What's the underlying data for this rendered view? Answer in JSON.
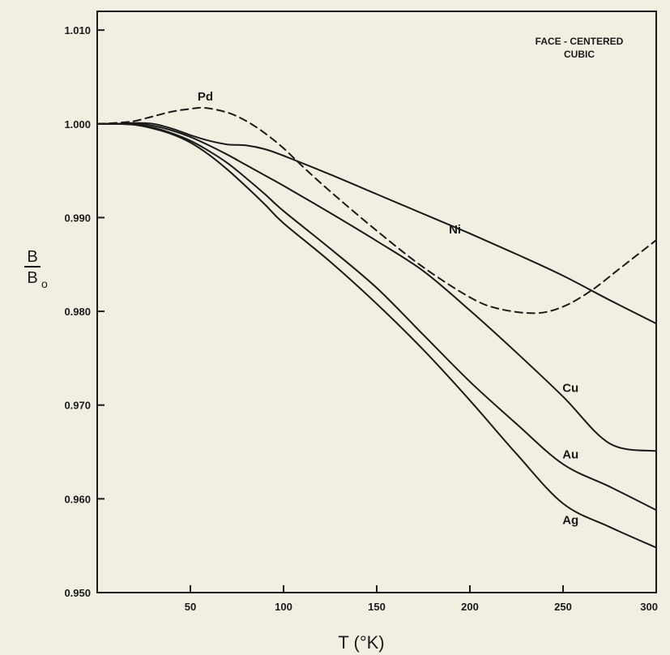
{
  "chart_data": {
    "type": "line",
    "annotation": [
      "FACE - CENTERED",
      "CUBIC"
    ],
    "xlabel": "T (°K)",
    "ylabel_num": "B",
    "ylabel_den": "B",
    "ylabel_sub": "o",
    "xlim": [
      0,
      300
    ],
    "ylim": [
      0.95,
      1.012
    ],
    "x_ticks": [
      50,
      100,
      150,
      200,
      250,
      300
    ],
    "y_ticks": [
      0.95,
      0.96,
      0.97,
      0.98,
      0.99,
      1.0,
      1.01
    ],
    "y_tick_labels": [
      "0.950",
      "0.960",
      "0.970",
      "0.980",
      "0.990",
      "1.000",
      "1.010"
    ],
    "grid": false,
    "series": [
      {
        "name": "Pd",
        "style": "dashed",
        "label_at": [
          58,
          1.0025
        ],
        "x": [
          0,
          10,
          20,
          30,
          40,
          50,
          58,
          70,
          80,
          90,
          100,
          110,
          125,
          150,
          175,
          200,
          215,
          235,
          250,
          265,
          280,
          300
        ],
        "y": [
          1.0,
          1.0001,
          1.0003,
          1.0008,
          1.0013,
          1.0016,
          1.0017,
          1.0012,
          1.0003,
          0.999,
          0.9974,
          0.9955,
          0.9928,
          0.9886,
          0.9847,
          0.9815,
          0.9803,
          0.9798,
          0.9805,
          0.9822,
          0.9845,
          0.9876
        ]
      },
      {
        "name": "Ni",
        "style": "solid",
        "label_at": [
          192,
          0.9883
        ],
        "x": [
          0,
          10,
          20,
          30,
          40,
          50,
          60,
          70,
          80,
          90,
          100,
          125,
          150,
          175,
          200,
          225,
          250,
          275,
          300
        ],
        "y": [
          1.0,
          1.0,
          1.0001,
          1.0,
          0.9995,
          0.9988,
          0.9982,
          0.9978,
          0.9977,
          0.9973,
          0.9966,
          0.9946,
          0.9925,
          0.9904,
          0.9883,
          0.9861,
          0.9838,
          0.9812,
          0.9787
        ]
      },
      {
        "name": "Cu",
        "style": "solid",
        "label_at": [
          254,
          0.9714
        ],
        "x": [
          0,
          10,
          20,
          30,
          40,
          50,
          60,
          70,
          80,
          90,
          100,
          125,
          150,
          175,
          200,
          225,
          250,
          275,
          300
        ],
        "y": [
          1.0,
          1.0,
          1.0,
          0.9998,
          0.9993,
          0.9986,
          0.9977,
          0.9967,
          0.9956,
          0.9945,
          0.9934,
          0.9905,
          0.9875,
          0.9843,
          0.9801,
          0.9756,
          0.9709,
          0.9659,
          0.9651
        ]
      },
      {
        "name": "Au",
        "style": "solid",
        "label_at": [
          254,
          0.9643
        ],
        "x": [
          0,
          10,
          20,
          30,
          40,
          50,
          60,
          70,
          80,
          90,
          100,
          125,
          150,
          175,
          200,
          225,
          250,
          275,
          300
        ],
        "y": [
          1.0,
          1.0,
          0.9999,
          0.9996,
          0.999,
          0.9982,
          0.9971,
          0.9958,
          0.9942,
          0.9925,
          0.9907,
          0.9867,
          0.9825,
          0.9775,
          0.9725,
          0.968,
          0.9637,
          0.9613,
          0.9588
        ]
      },
      {
        "name": "Ag",
        "style": "solid",
        "label_at": [
          254,
          0.9573
        ],
        "x": [
          0,
          10,
          20,
          30,
          40,
          50,
          60,
          70,
          80,
          90,
          100,
          125,
          150,
          175,
          200,
          225,
          250,
          275,
          300
        ],
        "y": [
          1.0,
          1.0,
          0.9999,
          0.9995,
          0.9989,
          0.998,
          0.9967,
          0.9951,
          0.9933,
          0.9914,
          0.9894,
          0.9853,
          0.9808,
          0.9759,
          0.9705,
          0.9648,
          0.9595,
          0.957,
          0.9548
        ]
      }
    ]
  }
}
